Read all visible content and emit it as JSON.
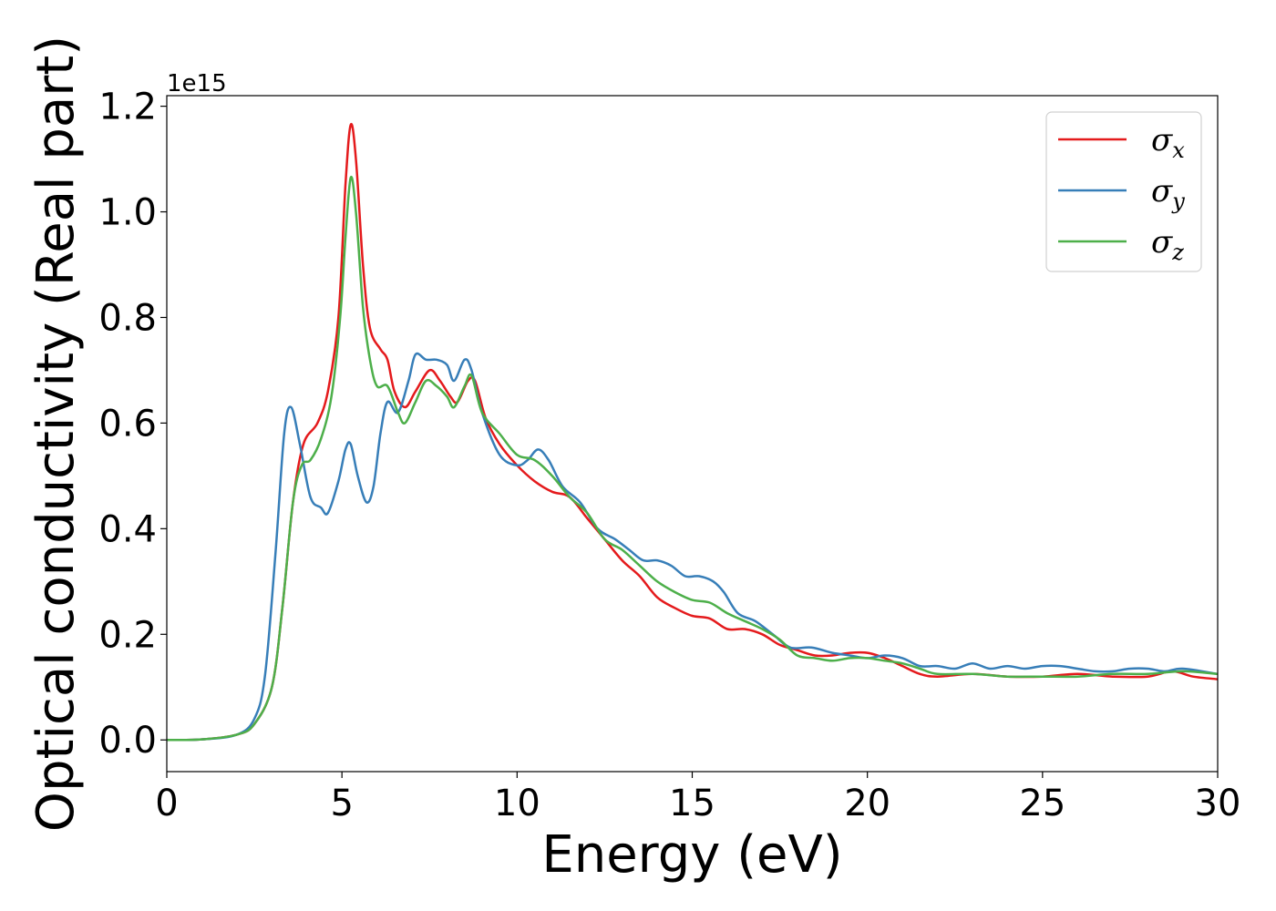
{
  "chart_data": {
    "type": "line",
    "title": "",
    "xlabel": "Energy (eV)",
    "ylabel": "Optical conductivity (Real part)",
    "offset_text": "1e15",
    "xlim": [
      0,
      30
    ],
    "ylim": [
      -0.06,
      1.22
    ],
    "x_ticks": [
      0,
      5,
      10,
      15,
      20,
      25,
      30
    ],
    "x_tick_labels": [
      "0",
      "5",
      "10",
      "15",
      "20",
      "25",
      "30"
    ],
    "y_ticks": [
      0.0,
      0.2,
      0.4,
      0.6,
      0.8,
      1.0,
      1.2
    ],
    "y_tick_labels": [
      "0.0",
      "0.2",
      "0.4",
      "0.6",
      "0.8",
      "1.0",
      "1.2"
    ],
    "grid": false,
    "legend_position": "top-right",
    "series": [
      {
        "name": "σ_x",
        "legend_symbol": "σ",
        "legend_subscript": "x",
        "color": "#e41a1c",
        "points": [
          [
            0,
            0
          ],
          [
            1,
            0.001
          ],
          [
            2,
            0.01
          ],
          [
            2.5,
            0.03
          ],
          [
            3,
            0.1
          ],
          [
            3.3,
            0.25
          ],
          [
            3.6,
            0.45
          ],
          [
            3.9,
            0.56
          ],
          [
            4.3,
            0.6
          ],
          [
            4.6,
            0.66
          ],
          [
            4.9,
            0.8
          ],
          [
            5.1,
            1.05
          ],
          [
            5.25,
            1.165
          ],
          [
            5.4,
            1.1
          ],
          [
            5.6,
            0.9
          ],
          [
            5.8,
            0.78
          ],
          [
            6.1,
            0.74
          ],
          [
            6.3,
            0.72
          ],
          [
            6.5,
            0.66
          ],
          [
            6.8,
            0.63
          ],
          [
            7.1,
            0.66
          ],
          [
            7.5,
            0.7
          ],
          [
            7.8,
            0.68
          ],
          [
            8.1,
            0.65
          ],
          [
            8.3,
            0.64
          ],
          [
            8.6,
            0.68
          ],
          [
            8.8,
            0.68
          ],
          [
            9.1,
            0.61
          ],
          [
            9.5,
            0.56
          ],
          [
            10,
            0.52
          ],
          [
            10.5,
            0.49
          ],
          [
            11,
            0.47
          ],
          [
            11.5,
            0.46
          ],
          [
            12,
            0.42
          ],
          [
            12.5,
            0.38
          ],
          [
            13,
            0.34
          ],
          [
            13.5,
            0.31
          ],
          [
            14,
            0.27
          ],
          [
            14.5,
            0.25
          ],
          [
            15,
            0.235
          ],
          [
            15.5,
            0.23
          ],
          [
            16,
            0.21
          ],
          [
            16.5,
            0.21
          ],
          [
            17,
            0.2
          ],
          [
            17.5,
            0.18
          ],
          [
            18,
            0.17
          ],
          [
            18.5,
            0.16
          ],
          [
            19,
            0.16
          ],
          [
            19.5,
            0.165
          ],
          [
            20,
            0.165
          ],
          [
            20.5,
            0.155
          ],
          [
            21,
            0.14
          ],
          [
            21.5,
            0.125
          ],
          [
            22,
            0.12
          ],
          [
            23,
            0.125
          ],
          [
            24,
            0.12
          ],
          [
            25,
            0.12
          ],
          [
            26,
            0.125
          ],
          [
            27,
            0.12
          ],
          [
            28,
            0.12
          ],
          [
            28.7,
            0.13
          ],
          [
            29.3,
            0.12
          ],
          [
            30,
            0.115
          ]
        ]
      },
      {
        "name": "σ_y",
        "legend_symbol": "σ",
        "legend_subscript": "y",
        "color": "#377eb8",
        "points": [
          [
            0,
            0
          ],
          [
            1,
            0.001
          ],
          [
            2,
            0.01
          ],
          [
            2.5,
            0.04
          ],
          [
            2.8,
            0.12
          ],
          [
            3.1,
            0.35
          ],
          [
            3.35,
            0.58
          ],
          [
            3.55,
            0.63
          ],
          [
            3.8,
            0.56
          ],
          [
            4.1,
            0.46
          ],
          [
            4.4,
            0.44
          ],
          [
            4.6,
            0.43
          ],
          [
            4.9,
            0.49
          ],
          [
            5.1,
            0.55
          ],
          [
            5.25,
            0.56
          ],
          [
            5.45,
            0.5
          ],
          [
            5.7,
            0.45
          ],
          [
            5.9,
            0.48
          ],
          [
            6.1,
            0.58
          ],
          [
            6.3,
            0.64
          ],
          [
            6.6,
            0.62
          ],
          [
            6.9,
            0.68
          ],
          [
            7.1,
            0.73
          ],
          [
            7.4,
            0.72
          ],
          [
            7.7,
            0.72
          ],
          [
            8,
            0.71
          ],
          [
            8.2,
            0.68
          ],
          [
            8.5,
            0.72
          ],
          [
            8.7,
            0.7
          ],
          [
            9,
            0.62
          ],
          [
            9.5,
            0.54
          ],
          [
            10,
            0.52
          ],
          [
            10.3,
            0.53
          ],
          [
            10.6,
            0.55
          ],
          [
            10.9,
            0.53
          ],
          [
            11.3,
            0.48
          ],
          [
            11.8,
            0.45
          ],
          [
            12.3,
            0.4
          ],
          [
            12.8,
            0.38
          ],
          [
            13.2,
            0.36
          ],
          [
            13.6,
            0.34
          ],
          [
            14,
            0.34
          ],
          [
            14.4,
            0.33
          ],
          [
            14.8,
            0.31
          ],
          [
            15.2,
            0.31
          ],
          [
            15.6,
            0.3
          ],
          [
            15.9,
            0.28
          ],
          [
            16.3,
            0.24
          ],
          [
            16.8,
            0.225
          ],
          [
            17.3,
            0.2
          ],
          [
            17.8,
            0.175
          ],
          [
            18.4,
            0.175
          ],
          [
            19,
            0.165
          ],
          [
            19.5,
            0.16
          ],
          [
            20,
            0.155
          ],
          [
            20.5,
            0.16
          ],
          [
            21,
            0.155
          ],
          [
            21.5,
            0.14
          ],
          [
            22,
            0.14
          ],
          [
            22.5,
            0.135
          ],
          [
            23,
            0.145
          ],
          [
            23.5,
            0.135
          ],
          [
            24,
            0.14
          ],
          [
            24.5,
            0.135
          ],
          [
            25,
            0.14
          ],
          [
            25.5,
            0.14
          ],
          [
            26,
            0.135
          ],
          [
            26.5,
            0.13
          ],
          [
            27,
            0.13
          ],
          [
            27.5,
            0.135
          ],
          [
            28,
            0.135
          ],
          [
            28.5,
            0.13
          ],
          [
            29,
            0.135
          ],
          [
            30,
            0.125
          ]
        ]
      },
      {
        "name": "σ_z",
        "legend_symbol": "σ",
        "legend_subscript": "z",
        "color": "#4daf4a",
        "points": [
          [
            0,
            0
          ],
          [
            1,
            0.001
          ],
          [
            2,
            0.01
          ],
          [
            2.5,
            0.03
          ],
          [
            3,
            0.1
          ],
          [
            3.3,
            0.25
          ],
          [
            3.6,
            0.45
          ],
          [
            3.85,
            0.52
          ],
          [
            4.1,
            0.53
          ],
          [
            4.4,
            0.57
          ],
          [
            4.7,
            0.65
          ],
          [
            4.95,
            0.8
          ],
          [
            5.1,
            0.95
          ],
          [
            5.25,
            1.065
          ],
          [
            5.4,
            1.0
          ],
          [
            5.6,
            0.82
          ],
          [
            5.8,
            0.72
          ],
          [
            6,
            0.67
          ],
          [
            6.3,
            0.67
          ],
          [
            6.6,
            0.62
          ],
          [
            6.8,
            0.6
          ],
          [
            7.1,
            0.64
          ],
          [
            7.4,
            0.68
          ],
          [
            7.7,
            0.67
          ],
          [
            8,
            0.65
          ],
          [
            8.2,
            0.63
          ],
          [
            8.5,
            0.67
          ],
          [
            8.7,
            0.69
          ],
          [
            9,
            0.62
          ],
          [
            9.5,
            0.58
          ],
          [
            10,
            0.54
          ],
          [
            10.5,
            0.53
          ],
          [
            11,
            0.5
          ],
          [
            11.5,
            0.46
          ],
          [
            12,
            0.43
          ],
          [
            12.5,
            0.38
          ],
          [
            13,
            0.36
          ],
          [
            13.5,
            0.33
          ],
          [
            14,
            0.3
          ],
          [
            14.5,
            0.28
          ],
          [
            15,
            0.265
          ],
          [
            15.5,
            0.26
          ],
          [
            16,
            0.24
          ],
          [
            16.5,
            0.225
          ],
          [
            17,
            0.21
          ],
          [
            17.5,
            0.19
          ],
          [
            18,
            0.16
          ],
          [
            18.5,
            0.155
          ],
          [
            19,
            0.15
          ],
          [
            19.5,
            0.155
          ],
          [
            20,
            0.155
          ],
          [
            20.5,
            0.15
          ],
          [
            21,
            0.145
          ],
          [
            21.5,
            0.135
          ],
          [
            22,
            0.125
          ],
          [
            23,
            0.125
          ],
          [
            24,
            0.12
          ],
          [
            25,
            0.12
          ],
          [
            26,
            0.12
          ],
          [
            27,
            0.125
          ],
          [
            28,
            0.125
          ],
          [
            29,
            0.13
          ],
          [
            30,
            0.125
          ]
        ]
      }
    ]
  }
}
